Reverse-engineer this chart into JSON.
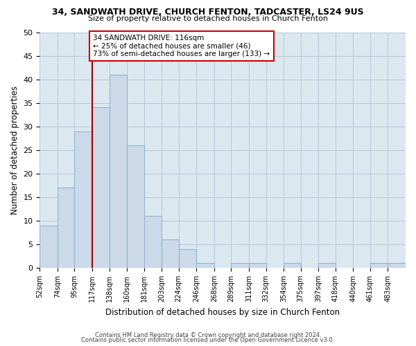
{
  "title1": "34, SANDWATH DRIVE, CHURCH FENTON, TADCASTER, LS24 9US",
  "title2": "Size of property relative to detached houses in Church Fenton",
  "xlabel": "Distribution of detached houses by size in Church Fenton",
  "ylabel": "Number of detached properties",
  "bin_labels": [
    "52sqm",
    "74sqm",
    "95sqm",
    "117sqm",
    "138sqm",
    "160sqm",
    "181sqm",
    "203sqm",
    "224sqm",
    "246sqm",
    "268sqm",
    "289sqm",
    "311sqm",
    "332sqm",
    "354sqm",
    "375sqm",
    "397sqm",
    "418sqm",
    "440sqm",
    "461sqm",
    "483sqm"
  ],
  "bar_heights": [
    9,
    17,
    29,
    34,
    41,
    26,
    11,
    6,
    4,
    1,
    0,
    1,
    1,
    0,
    1,
    0,
    1,
    0,
    0,
    1,
    1
  ],
  "bar_color": "#ccd9e8",
  "bar_edge_color": "#8fb4d0",
  "vline_x_index": 3,
  "vline_color": "#990000",
  "ylim": [
    0,
    50
  ],
  "yticks": [
    0,
    5,
    10,
    15,
    20,
    25,
    30,
    35,
    40,
    45,
    50
  ],
  "annotation_text": "34 SANDWATH DRIVE: 116sqm\n← 25% of detached houses are smaller (46)\n73% of semi-detached houses are larger (133) →",
  "annotation_box_color": "#ffffff",
  "annotation_box_edge": "#cc0000",
  "plot_bg_color": "#dce8f0",
  "fig_bg_color": "#ffffff",
  "grid_color": "#b8c8d8",
  "bin_edges": [
    52,
    74,
    95,
    117,
    138,
    160,
    181,
    203,
    224,
    246,
    268,
    289,
    311,
    332,
    354,
    375,
    397,
    418,
    440,
    461,
    483,
    505
  ],
  "footnote1": "Contains HM Land Registry data © Crown copyright and database right 2024.",
  "footnote2": "Contains public sector information licensed under the Open Government Licence v3.0."
}
